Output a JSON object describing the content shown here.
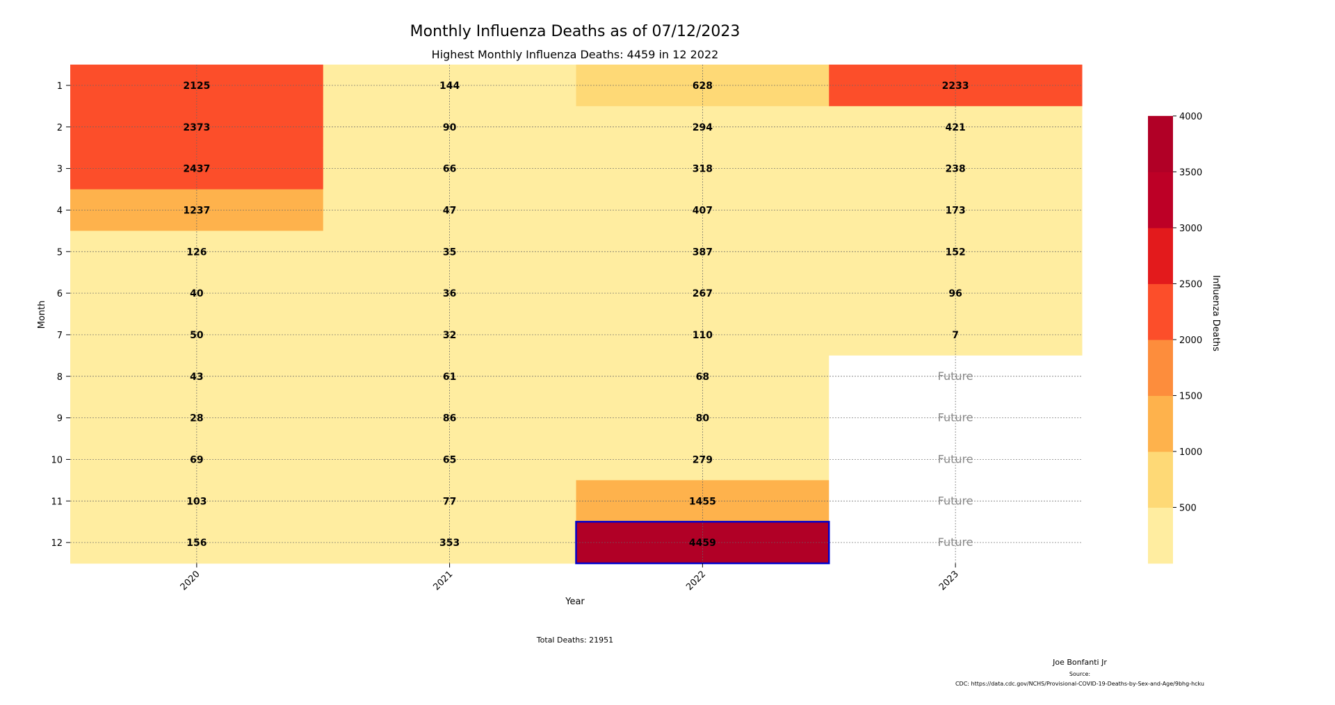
{
  "chart_data": {
    "type": "heatmap",
    "title": "Monthly Influenza Deaths as of 07/12/2023",
    "subtitle": "Highest Monthly Influenza Deaths: 4459 in 12 2022",
    "xlabel": "Year",
    "ylabel": "Month",
    "x_categories": [
      "2020",
      "2021",
      "2022",
      "2023"
    ],
    "y_categories": [
      "1",
      "2",
      "3",
      "4",
      "5",
      "6",
      "7",
      "8",
      "9",
      "10",
      "11",
      "12"
    ],
    "values": [
      [
        2125,
        2373,
        2437,
        1237,
        126,
        40,
        50,
        43,
        28,
        69,
        103,
        156
      ],
      [
        144,
        90,
        66,
        47,
        35,
        36,
        32,
        61,
        86,
        65,
        77,
        353
      ],
      [
        628,
        294,
        318,
        407,
        387,
        267,
        110,
        68,
        80,
        279,
        1455,
        4459
      ],
      [
        2233,
        421,
        238,
        173,
        152,
        96,
        7,
        null,
        null,
        null,
        null,
        null
      ]
    ],
    "missing_label": "Future",
    "highlight": {
      "year": "2022",
      "month": "12",
      "value": 4459
    },
    "colorbar": {
      "label": "Influenza Deaths",
      "ticks": [
        "500",
        "1000",
        "1500",
        "2000",
        "2500",
        "3000",
        "3500",
        "4000"
      ],
      "range": [
        0,
        4459
      ],
      "bin_width": 500,
      "colors": [
        "#ffeda0",
        "#fed976",
        "#feb24c",
        "#fd8d3c",
        "#fc4e2a",
        "#e31a1c",
        "#bd0026",
        "#b10026"
      ]
    },
    "grid": true,
    "footer": {
      "total": "Total Deaths: 21951",
      "author": "Joe Bonfanti Jr",
      "source_label": "Source:",
      "source": "CDC: https://data.cdc.gov/NCHS/Provisional-COVID-19-Deaths-by-Sex-and-Age/9bhg-hcku"
    }
  }
}
